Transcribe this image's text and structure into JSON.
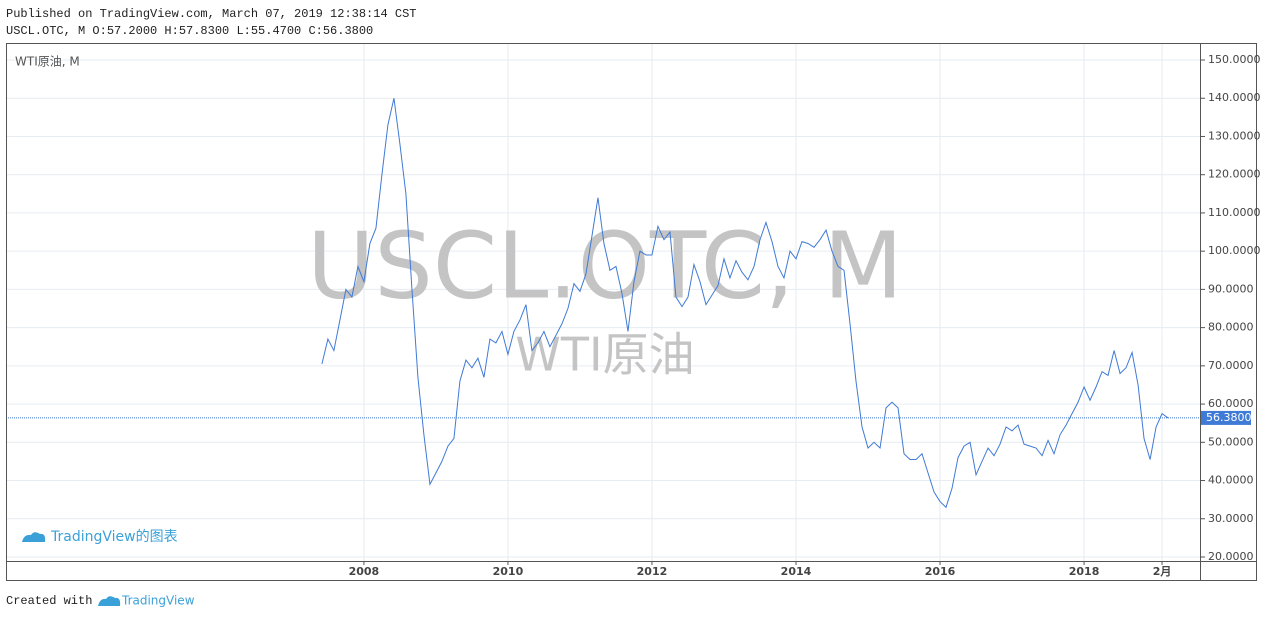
{
  "chart_data": {
    "type": "line",
    "published": "Published on TradingView.com, March 07, 2019 12:38:14 CST",
    "ohlc": "USCL.OTC, M O:57.2000 H:57.8300 L:55.4700 C:56.3800",
    "legend_text": "WTI原油, M",
    "watermark": "USCL.OTC, M",
    "watermark_sub": "WTI原油",
    "brand_label": "TradingView的图表",
    "footer_prefix": "Created with",
    "footer_brand": "TradingView",
    "color": "#3f7ad6",
    "grid": true,
    "x": [
      2007.417,
      2007.5,
      2007.583,
      2007.667,
      2007.75,
      2007.833,
      2007.917,
      2008,
      2008.083,
      2008.167,
      2008.25,
      2008.333,
      2008.417,
      2008.5,
      2008.583,
      2008.667,
      2008.75,
      2008.833,
      2008.917,
      2009,
      2009.083,
      2009.167,
      2009.25,
      2009.333,
      2009.417,
      2009.5,
      2009.583,
      2009.667,
      2009.75,
      2009.833,
      2009.917,
      2010,
      2010.083,
      2010.167,
      2010.25,
      2010.333,
      2010.417,
      2010.5,
      2010.583,
      2010.667,
      2010.75,
      2010.833,
      2010.917,
      2011,
      2011.083,
      2011.167,
      2011.25,
      2011.333,
      2011.417,
      2011.5,
      2011.583,
      2011.667,
      2011.75,
      2011.833,
      2011.917,
      2012,
      2012.083,
      2012.167,
      2012.25,
      2012.333,
      2012.417,
      2012.5,
      2012.583,
      2012.667,
      2012.75,
      2012.833,
      2012.917,
      2013,
      2013.083,
      2013.167,
      2013.25,
      2013.333,
      2013.417,
      2013.5,
      2013.583,
      2013.667,
      2013.75,
      2013.833,
      2013.917,
      2014,
      2014.083,
      2014.167,
      2014.25,
      2014.333,
      2014.417,
      2014.5,
      2014.583,
      2014.667,
      2014.75,
      2014.833,
      2014.917,
      2015,
      2015.083,
      2015.167,
      2015.25,
      2015.333,
      2015.417,
      2015.5,
      2015.583,
      2015.667,
      2015.75,
      2015.833,
      2015.917,
      2016,
      2016.083,
      2016.167,
      2016.25,
      2016.333,
      2016.417,
      2016.5,
      2016.583,
      2016.667,
      2016.75,
      2016.833,
      2016.917,
      2017,
      2017.083,
      2017.167,
      2017.25,
      2017.333,
      2017.417,
      2017.5,
      2017.583,
      2017.667,
      2017.75,
      2017.833,
      2017.917,
      2018,
      2018.083,
      2018.167,
      2018.25,
      2018.333,
      2018.417,
      2018.5,
      2018.583,
      2018.667,
      2018.75,
      2018.833,
      2018.917,
      2019,
      2019.083,
      2019.167
    ],
    "values": [
      70.5,
      77,
      74,
      82,
      90,
      88,
      96,
      92,
      102,
      106,
      120,
      133,
      140,
      128,
      115,
      90,
      67,
      52,
      39,
      42,
      45,
      49,
      51,
      66,
      71.5,
      69.5,
      72,
      67,
      77,
      76,
      79,
      73,
      79,
      82,
      86,
      74,
      76,
      79,
      75,
      78,
      81,
      85,
      91.5,
      89.5,
      94,
      104,
      114,
      102,
      95,
      96,
      89,
      79,
      92,
      100,
      99,
      99,
      106.5,
      103,
      105,
      88,
      85.5,
      88,
      96.5,
      92,
      86,
      88.5,
      91,
      98,
      93,
      97.5,
      94.5,
      92.5,
      96,
      103,
      107.5,
      102.5,
      96,
      93,
      100,
      98,
      102.5,
      102,
      101,
      103,
      105.5,
      100,
      96,
      95,
      81,
      66,
      54,
      48.5,
      50,
      48.5,
      59,
      60.5,
      59,
      47,
      45.5,
      45.5,
      47,
      42,
      37,
      34.5,
      33,
      38,
      46,
      49,
      50,
      41.5,
      45,
      48.5,
      46.5,
      49.5,
      54,
      53,
      54.5,
      49.5,
      49,
      48.5,
      46.5,
      50.5,
      47,
      52,
      54.5,
      57.5,
      60.5,
      64.5,
      61,
      64.5,
      68.5,
      67.5,
      74,
      68,
      69.5,
      73.5,
      65,
      51,
      45.5,
      54,
      57.5,
      56.38
    ],
    "last_price": {
      "value": 56.38,
      "label": "56.3800"
    },
    "xlim": [
      2003.03,
      2019.61
    ],
    "xticks": [
      2008,
      2010,
      2012,
      2014,
      2016,
      2018,
      {
        "value": 2019.083,
        "label": "2月"
      }
    ],
    "ylim": [
      18.95,
      154.45
    ],
    "yticks": [
      {
        "value": 20,
        "label": "20.0000"
      },
      {
        "value": 30,
        "label": "30.0000"
      },
      {
        "value": 40,
        "label": "40.0000"
      },
      {
        "value": 50,
        "label": "50.0000"
      },
      {
        "value": 60,
        "label": "60.0000"
      },
      {
        "value": 70,
        "label": "70.0000"
      },
      {
        "value": 80,
        "label": "80.0000"
      },
      {
        "value": 90,
        "label": "90.0000"
      },
      {
        "value": 100,
        "label": "100.0000"
      },
      {
        "value": 110,
        "label": "110.0000"
      },
      {
        "value": 120,
        "label": "120.0000"
      },
      {
        "value": 130,
        "label": "130.0000"
      },
      {
        "value": 140,
        "label": "140.0000"
      },
      {
        "value": 150,
        "label": "150.0000"
      }
    ]
  }
}
